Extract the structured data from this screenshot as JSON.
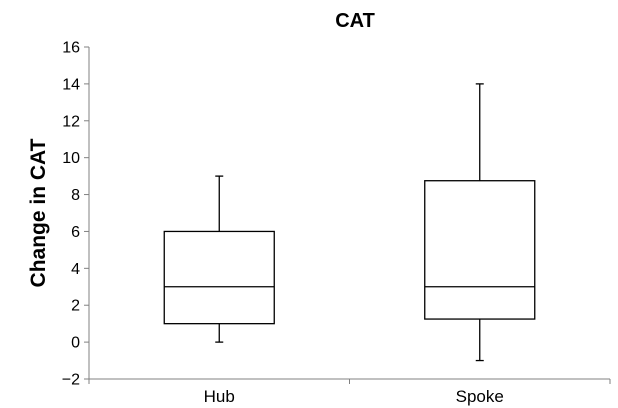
{
  "chart_data": {
    "type": "box",
    "title": "CAT",
    "xlabel": "",
    "ylabel": "Change in CAT",
    "ylim": [
      -2,
      16
    ],
    "yticks": [
      -2,
      0,
      2,
      4,
      6,
      8,
      10,
      12,
      14,
      16
    ],
    "ytick_labels": [
      "−2",
      "0",
      "2",
      "4",
      "6",
      "8",
      "10",
      "12",
      "14",
      "16"
    ],
    "categories": [
      "Hub",
      "Spoke"
    ],
    "boxes": [
      {
        "category": "Hub",
        "min": 0,
        "q1": 1,
        "median": 3,
        "q3": 6,
        "max": 9
      },
      {
        "category": "Spoke",
        "min": -1,
        "q1": 1.25,
        "median": 3,
        "q3": 8.75,
        "max": 14
      }
    ],
    "grid": false,
    "colors": {
      "box_stroke": "#000000",
      "box_fill": "#ffffff",
      "axis": "#808080"
    }
  }
}
